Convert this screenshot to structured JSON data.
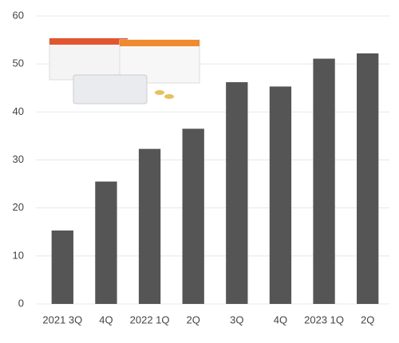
{
  "chart_data": {
    "type": "bar",
    "categories": [
      "2021 3Q",
      "4Q",
      "2022 1Q",
      "2Q",
      "3Q",
      "4Q",
      "2023 1Q",
      "2Q"
    ],
    "values": [
      15.3,
      25.5,
      32.3,
      36.5,
      46.2,
      45.3,
      51.1,
      52.2
    ],
    "color": "#555555",
    "ylim": [
      0,
      60
    ],
    "yticks": [
      0,
      10,
      20,
      30,
      40,
      50,
      60
    ],
    "grid": true
  }
}
